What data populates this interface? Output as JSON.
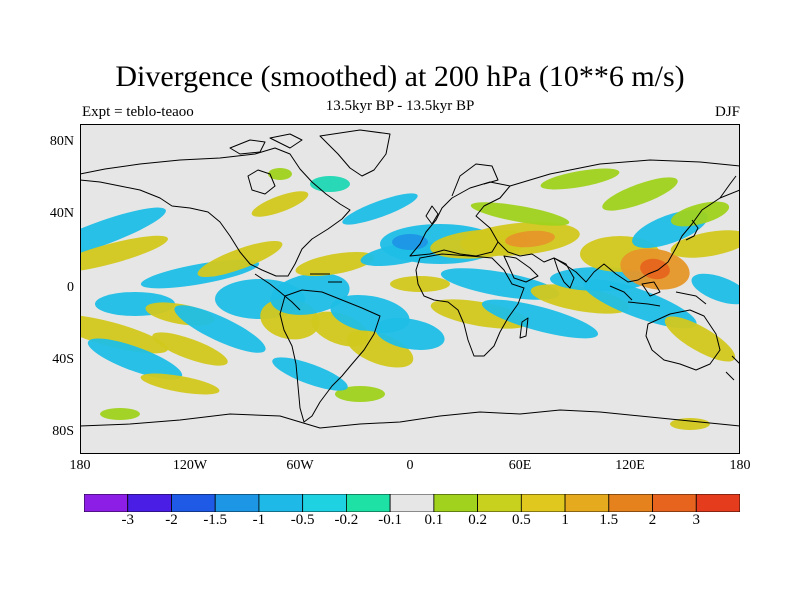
{
  "title": "Divergence (smoothed) at 200 hPa (10**6 m/s)",
  "experiment": "Expt = teblo-teaoo",
  "period": "13.5kyr BP - 13.5kyr BP",
  "season": "DJF",
  "lat_labels": [
    "80N",
    "40N",
    "0",
    "40S",
    "80S"
  ],
  "lon_labels": [
    "180",
    "120W",
    "60W",
    "0",
    "60E",
    "120E",
    "180"
  ],
  "colorbar": {
    "colors": [
      "#8c1ee6",
      "#4b1ee6",
      "#1e5ae6",
      "#1e96e6",
      "#1eb9e6",
      "#1ed2e1",
      "#1ee1a5",
      "#e6e6e6",
      "#a0d21e",
      "#c8d21e",
      "#e1c81e",
      "#e6aa1e",
      "#e6821e",
      "#e6641e",
      "#e63c1e"
    ],
    "labels": [
      "-3",
      "-2",
      "-1.5",
      "-1",
      "-0.5",
      "-0.2",
      "-0.1",
      "0.1",
      "0.2",
      "0.5",
      "1",
      "1.5",
      "2",
      "3"
    ]
  },
  "map": {
    "background": "#e6e6e6",
    "neg_color": "#1ebee6",
    "neg_strong": "#1e96e6",
    "neg_weak": "#1ed7b4",
    "pos_weak": "#a0d21e",
    "pos_color": "#d2c81e",
    "pos_strong": "#e69628",
    "pos_max": "#e6641e"
  }
}
